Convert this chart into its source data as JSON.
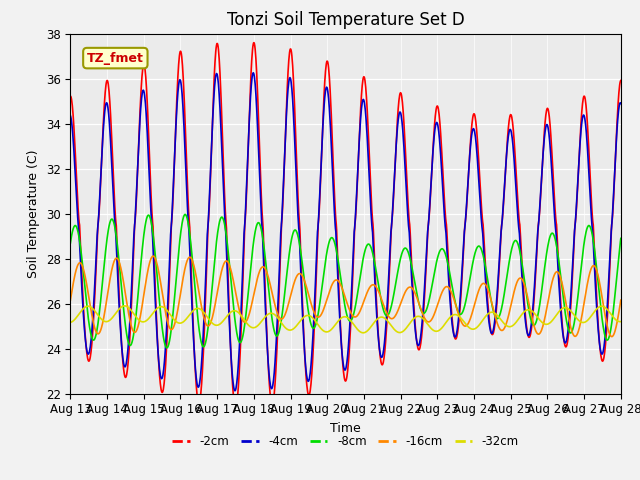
{
  "title": "Tonzi Soil Temperature Set D",
  "xlabel": "Time",
  "ylabel": "Soil Temperature (C)",
  "ylim": [
    22,
    38
  ],
  "background_color": "#ebebeb",
  "fig_facecolor": "#f2f2f2",
  "legend_label": "TZ_fmet",
  "series_labels": [
    "-2cm",
    "-4cm",
    "-8cm",
    "-16cm",
    "-32cm"
  ],
  "series_colors": [
    "#ff0000",
    "#0000cc",
    "#00dd00",
    "#ff8800",
    "#dddd00"
  ],
  "x_tick_labels": [
    "Aug 13",
    "Aug 14",
    "Aug 15",
    "Aug 16",
    "Aug 17",
    "Aug 18",
    "Aug 19",
    "Aug 20",
    "Aug 21",
    "Aug 22",
    "Aug 23",
    "Aug 24",
    "Aug 25",
    "Aug 26",
    "Aug 27",
    "Aug 28"
  ],
  "n_days": 15,
  "pts_per_day": 96
}
